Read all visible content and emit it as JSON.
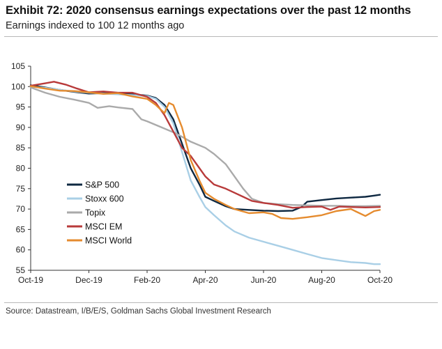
{
  "title": "Exhibit 72: 2020 consensus earnings expectations over the past 12 months",
  "subtitle": "Earnings indexed to 100 12 months ago",
  "source": "Source: Datastream, I/B/E/S, Goldman Sachs Global Investment Research",
  "chart_data": {
    "type": "line",
    "ylim": [
      55,
      105
    ],
    "xlim": [
      0,
      12
    ],
    "yticks": [
      55,
      60,
      65,
      70,
      75,
      80,
      85,
      90,
      95,
      100,
      105
    ],
    "xticks": [
      {
        "pos": 0,
        "label": "Oct-19"
      },
      {
        "pos": 2,
        "label": "Dec-19"
      },
      {
        "pos": 4,
        "label": "Feb-20"
      },
      {
        "pos": 6,
        "label": "Apr-20"
      },
      {
        "pos": 8,
        "label": "Jun-20"
      },
      {
        "pos": 10,
        "label": "Aug-20"
      },
      {
        "pos": 12,
        "label": "Oct-20"
      }
    ],
    "grid": false,
    "legend_position": "center-left",
    "series": [
      {
        "name": "S&P 500",
        "color": "#0e2841",
        "points": [
          [
            0,
            100.3
          ],
          [
            0.5,
            99.8
          ],
          [
            1,
            99.2
          ],
          [
            1.5,
            98.7
          ],
          [
            2,
            98.3
          ],
          [
            2.5,
            98.4
          ],
          [
            3,
            98.3
          ],
          [
            3.5,
            98.1
          ],
          [
            4,
            97.8
          ],
          [
            4.3,
            97.2
          ],
          [
            4.6,
            95.5
          ],
          [
            4.9,
            92
          ],
          [
            5.2,
            86
          ],
          [
            5.5,
            80
          ],
          [
            5.8,
            76
          ],
          [
            6.0,
            73
          ],
          [
            6.3,
            72
          ],
          [
            6.7,
            70.7
          ],
          [
            7.0,
            70.0
          ],
          [
            7.5,
            69.8
          ],
          [
            8.0,
            69.6
          ],
          [
            8.5,
            69.5
          ],
          [
            9.0,
            69.6
          ],
          [
            9.3,
            70.5
          ],
          [
            9.5,
            71.8
          ],
          [
            10,
            72.2
          ],
          [
            10.5,
            72.6
          ],
          [
            11,
            72.8
          ],
          [
            11.5,
            73.0
          ],
          [
            11.8,
            73.3
          ],
          [
            12,
            73.5
          ]
        ]
      },
      {
        "name": "Stoxx 600",
        "color": "#a9cfe6",
        "points": [
          [
            0,
            100.0
          ],
          [
            0.5,
            99.7
          ],
          [
            1,
            99.2
          ],
          [
            1.5,
            98.8
          ],
          [
            2,
            98.5
          ],
          [
            2.5,
            98.3
          ],
          [
            3,
            98.1
          ],
          [
            3.5,
            97.9
          ],
          [
            4,
            97.7
          ],
          [
            4.3,
            97.0
          ],
          [
            4.6,
            95
          ],
          [
            4.9,
            91
          ],
          [
            5.2,
            84
          ],
          [
            5.5,
            77
          ],
          [
            5.8,
            73
          ],
          [
            6.0,
            70.5
          ],
          [
            6.3,
            68.5
          ],
          [
            6.7,
            66
          ],
          [
            7.0,
            64.5
          ],
          [
            7.5,
            63
          ],
          [
            8.0,
            62
          ],
          [
            8.5,
            61
          ],
          [
            9.0,
            60
          ],
          [
            9.5,
            59
          ],
          [
            10,
            58
          ],
          [
            10.5,
            57.5
          ],
          [
            11,
            57
          ],
          [
            11.5,
            56.8
          ],
          [
            11.8,
            56.5
          ],
          [
            12,
            56.5
          ]
        ]
      },
      {
        "name": "Topix",
        "color": "#aaaaaa",
        "points": [
          [
            0,
            99.8
          ],
          [
            0.5,
            98.5
          ],
          [
            1,
            97.5
          ],
          [
            1.5,
            96.8
          ],
          [
            2,
            96.0
          ],
          [
            2.3,
            94.8
          ],
          [
            2.7,
            95.2
          ],
          [
            3,
            94.9
          ],
          [
            3.5,
            94.5
          ],
          [
            3.8,
            92
          ],
          [
            4,
            91.5
          ],
          [
            4.5,
            90
          ],
          [
            5,
            88.5
          ],
          [
            5.5,
            86.5
          ],
          [
            6,
            85
          ],
          [
            6.3,
            83.5
          ],
          [
            6.7,
            81
          ],
          [
            7.0,
            78
          ],
          [
            7.3,
            75
          ],
          [
            7.6,
            72.5
          ],
          [
            8.0,
            71.5
          ],
          [
            8.5,
            71.2
          ],
          [
            9,
            71
          ],
          [
            9.5,
            70.9
          ],
          [
            10,
            70.8
          ],
          [
            10.5,
            70.8
          ],
          [
            11,
            70.7
          ],
          [
            11.5,
            70.7
          ],
          [
            12,
            70.8
          ]
        ]
      },
      {
        "name": "MSCI EM",
        "color": "#b83a3a",
        "points": [
          [
            0,
            100.2
          ],
          [
            0.5,
            100.8
          ],
          [
            0.8,
            101.2
          ],
          [
            1.2,
            100.5
          ],
          [
            1.6,
            99.5
          ],
          [
            2,
            98.6
          ],
          [
            2.5,
            98.8
          ],
          [
            3,
            98.5
          ],
          [
            3.5,
            98.5
          ],
          [
            4,
            97.5
          ],
          [
            4.3,
            96.0
          ],
          [
            4.6,
            93
          ],
          [
            4.9,
            89
          ],
          [
            5.2,
            85
          ],
          [
            5.5,
            83
          ],
          [
            5.8,
            80
          ],
          [
            6.0,
            78
          ],
          [
            6.3,
            76
          ],
          [
            6.7,
            75
          ],
          [
            7.0,
            74
          ],
          [
            7.3,
            73
          ],
          [
            7.6,
            72
          ],
          [
            8.0,
            71.5
          ],
          [
            8.5,
            71
          ],
          [
            9,
            70.3
          ],
          [
            9.5,
            70.5
          ],
          [
            10,
            70.6
          ],
          [
            10.3,
            69.8
          ],
          [
            10.6,
            70.6
          ],
          [
            11,
            70.5
          ],
          [
            11.5,
            70.4
          ],
          [
            12,
            70.5
          ]
        ]
      },
      {
        "name": "MSCI World",
        "color": "#e58b2e",
        "points": [
          [
            0,
            100.1
          ],
          [
            0.5,
            99.5
          ],
          [
            1,
            99.0
          ],
          [
            1.5,
            98.9
          ],
          [
            2,
            98.6
          ],
          [
            2.5,
            98.2
          ],
          [
            3,
            98.4
          ],
          [
            3.5,
            97.6
          ],
          [
            4,
            97.0
          ],
          [
            4.3,
            95.5
          ],
          [
            4.6,
            93.5
          ],
          [
            4.75,
            96
          ],
          [
            4.9,
            95.5
          ],
          [
            5.2,
            90
          ],
          [
            5.5,
            82
          ],
          [
            5.8,
            77
          ],
          [
            6.0,
            74
          ],
          [
            6.3,
            72.5
          ],
          [
            6.7,
            71
          ],
          [
            7.0,
            70
          ],
          [
            7.5,
            69
          ],
          [
            8.0,
            69.2
          ],
          [
            8.3,
            68.8
          ],
          [
            8.6,
            67.8
          ],
          [
            9.0,
            67.6
          ],
          [
            9.5,
            68
          ],
          [
            10,
            68.5
          ],
          [
            10.5,
            69.5
          ],
          [
            11,
            70
          ],
          [
            11.5,
            68.3
          ],
          [
            11.8,
            69.5
          ],
          [
            12,
            69.8
          ]
        ]
      }
    ]
  }
}
